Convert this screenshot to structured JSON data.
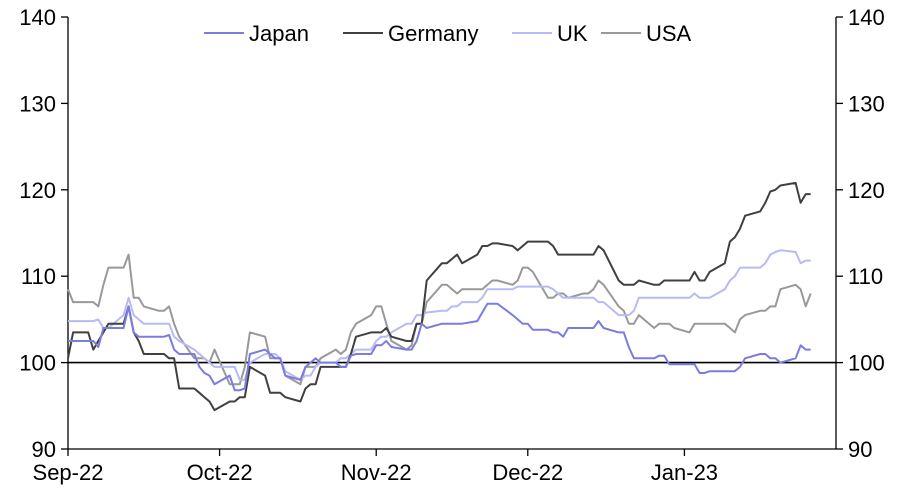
{
  "chart_data": {
    "type": "line",
    "title": "",
    "xlabel": "",
    "ylabel": "",
    "ylim": [
      90,
      140
    ],
    "yticks": [
      90,
      100,
      110,
      120,
      130,
      140
    ],
    "xlim": [
      "2022-09-01",
      "2023-01-31"
    ],
    "xticks": [
      {
        "date": "2022-09-01",
        "label": "Sep-22"
      },
      {
        "date": "2022-10-01",
        "label": "Oct-22"
      },
      {
        "date": "2022-11-01",
        "label": "Nov-22"
      },
      {
        "date": "2022-12-01",
        "label": "Dec-22"
      },
      {
        "date": "2023-01-01",
        "label": "Jan-23"
      }
    ],
    "reference_line": 100,
    "grid": false,
    "legend_position": "top",
    "dates": [
      "2022-09-01",
      "2022-09-02",
      "2022-09-05",
      "2022-09-06",
      "2022-09-07",
      "2022-09-08",
      "2022-09-09",
      "2022-09-12",
      "2022-09-13",
      "2022-09-14",
      "2022-09-15",
      "2022-09-16",
      "2022-09-19",
      "2022-09-20",
      "2022-09-21",
      "2022-09-22",
      "2022-09-23",
      "2022-09-26",
      "2022-09-27",
      "2022-09-28",
      "2022-09-29",
      "2022-09-30",
      "2022-10-03",
      "2022-10-04",
      "2022-10-05",
      "2022-10-06",
      "2022-10-07",
      "2022-10-10",
      "2022-10-11",
      "2022-10-12",
      "2022-10-13",
      "2022-10-14",
      "2022-10-17",
      "2022-10-18",
      "2022-10-19",
      "2022-10-20",
      "2022-10-21",
      "2022-10-24",
      "2022-10-25",
      "2022-10-26",
      "2022-10-27",
      "2022-10-28",
      "2022-10-31",
      "2022-11-01",
      "2022-11-02",
      "2022-11-03",
      "2022-11-04",
      "2022-11-07",
      "2022-11-08",
      "2022-11-09",
      "2022-11-10",
      "2022-11-11",
      "2022-11-14",
      "2022-11-15",
      "2022-11-16",
      "2022-11-17",
      "2022-11-18",
      "2022-11-21",
      "2022-11-22",
      "2022-11-23",
      "2022-11-24",
      "2022-11-25",
      "2022-11-28",
      "2022-11-29",
      "2022-11-30",
      "2022-12-01",
      "2022-12-02",
      "2022-12-05",
      "2022-12-06",
      "2022-12-07",
      "2022-12-08",
      "2022-12-09",
      "2022-12-12",
      "2022-12-13",
      "2022-12-14",
      "2022-12-15",
      "2022-12-16",
      "2022-12-19",
      "2022-12-20",
      "2022-12-21",
      "2022-12-22",
      "2022-12-23",
      "2022-12-26",
      "2022-12-27",
      "2022-12-28",
      "2022-12-29",
      "2022-12-30",
      "2023-01-02",
      "2023-01-03",
      "2023-01-04",
      "2023-01-05",
      "2023-01-06",
      "2023-01-09",
      "2023-01-10",
      "2023-01-11",
      "2023-01-12",
      "2023-01-13",
      "2023-01-16",
      "2023-01-17",
      "2023-01-18",
      "2023-01-19",
      "2023-01-20",
      "2023-01-23",
      "2023-01-24",
      "2023-01-25",
      "2023-01-26"
    ],
    "series": [
      {
        "name": "Japan",
        "color": "#7b7ce0",
        "values": [
          102.5,
          102.5,
          102.5,
          102.5,
          101.8,
          104.0,
          104.0,
          104.0,
          106.5,
          103.5,
          103.0,
          103.0,
          103.0,
          103.0,
          103.2,
          101.5,
          101.0,
          101.0,
          99.5,
          98.8,
          98.5,
          97.5,
          98.5,
          96.8,
          96.8,
          97.0,
          101.0,
          101.5,
          101.0,
          100.5,
          100.5,
          98.5,
          98.0,
          99.5,
          100.0,
          100.5,
          100.0,
          100.0,
          99.5,
          99.5,
          100.8,
          101.0,
          101.0,
          102.0,
          102.0,
          102.5,
          101.8,
          101.5,
          101.5,
          102.5,
          104.5,
          104.0,
          104.5,
          104.5,
          104.5,
          104.5,
          104.5,
          104.8,
          105.8,
          106.8,
          106.8,
          106.8,
          105.5,
          105.0,
          104.5,
          104.5,
          103.8,
          103.8,
          103.5,
          103.5,
          103.0,
          104.0,
          104.0,
          104.0,
          104.0,
          104.8,
          104.0,
          103.5,
          103.5,
          101.8,
          100.5,
          100.5,
          100.5,
          100.8,
          100.8,
          99.8,
          99.8,
          99.8,
          99.8,
          98.8,
          98.8,
          99.0,
          99.0,
          99.0,
          99.0,
          99.5,
          100.5,
          101.0,
          101.0,
          100.5,
          100.5,
          100.0,
          100.5,
          102.0,
          101.5,
          101.5
        ]
      },
      {
        "name": "Germany",
        "color": "#404040",
        "values": [
          100.5,
          103.5,
          103.5,
          101.5,
          102.5,
          103.5,
          104.5,
          104.5,
          106.5,
          103.5,
          102.5,
          101.0,
          101.0,
          101.0,
          100.5,
          100.5,
          97.0,
          97.0,
          96.5,
          96.0,
          95.5,
          94.5,
          95.5,
          95.5,
          96.0,
          96.0,
          99.5,
          98.5,
          96.5,
          96.5,
          96.5,
          96.0,
          95.5,
          97.0,
          97.5,
          97.5,
          99.5,
          99.5,
          99.5,
          99.5,
          101.0,
          103.0,
          103.5,
          103.5,
          103.5,
          104.0,
          103.0,
          102.5,
          102.5,
          104.5,
          104.5,
          109.5,
          111.5,
          111.5,
          112.0,
          112.5,
          111.5,
          112.5,
          113.5,
          113.5,
          113.8,
          113.8,
          113.5,
          113.0,
          113.5,
          114.0,
          114.0,
          114.0,
          113.5,
          112.5,
          112.5,
          112.5,
          112.5,
          112.5,
          112.5,
          113.5,
          113.0,
          109.5,
          109.0,
          109.0,
          109.0,
          109.5,
          109.0,
          109.0,
          109.5,
          109.5,
          109.5,
          109.5,
          110.5,
          109.5,
          109.5,
          110.5,
          111.5,
          114.0,
          114.5,
          115.5,
          117.0,
          117.5,
          118.5,
          119.8,
          120.0,
          120.5,
          120.8,
          118.5,
          119.5,
          119.5
        ]
      },
      {
        "name": "UK",
        "color": "#b8baf5",
        "values": [
          104.8,
          104.8,
          104.8,
          104.8,
          105.0,
          104.0,
          104.0,
          105.5,
          107.5,
          105.5,
          105.0,
          104.5,
          104.5,
          104.5,
          104.5,
          103.0,
          102.5,
          101.5,
          101.0,
          100.5,
          100.0,
          99.5,
          99.5,
          99.5,
          98.0,
          98.0,
          100.0,
          101.0,
          101.0,
          101.0,
          100.5,
          99.0,
          98.0,
          98.5,
          98.5,
          99.5,
          100.0,
          100.0,
          100.5,
          100.5,
          101.0,
          101.5,
          101.5,
          102.5,
          103.0,
          103.0,
          103.5,
          104.5,
          104.5,
          105.5,
          105.5,
          105.8,
          106.0,
          106.0,
          106.5,
          106.5,
          107.0,
          107.0,
          107.5,
          108.5,
          108.5,
          108.5,
          108.5,
          108.8,
          108.8,
          108.8,
          108.8,
          108.8,
          108.5,
          108.0,
          107.5,
          107.5,
          107.5,
          107.5,
          107.5,
          107.0,
          107.0,
          105.5,
          105.5,
          105.5,
          106.0,
          107.5,
          107.5,
          107.5,
          107.5,
          107.5,
          107.5,
          107.5,
          108.0,
          107.5,
          107.5,
          107.5,
          108.5,
          109.5,
          110.0,
          111.0,
          111.0,
          111.0,
          111.5,
          112.5,
          112.8,
          113.0,
          112.8,
          111.5,
          111.8,
          111.8
        ]
      },
      {
        "name": "USA",
        "color": "#999999",
        "values": [
          108.5,
          107.0,
          107.0,
          107.0,
          106.5,
          109.0,
          111.0,
          111.0,
          112.5,
          107.5,
          107.5,
          106.5,
          106.0,
          106.0,
          106.5,
          104.5,
          103.0,
          100.5,
          100.5,
          100.5,
          100.0,
          101.5,
          97.5,
          97.5,
          97.5,
          99.5,
          103.5,
          103.0,
          100.5,
          100.5,
          100.5,
          98.5,
          97.5,
          99.5,
          99.5,
          99.5,
          100.5,
          101.5,
          101.0,
          101.5,
          103.5,
          104.5,
          105.5,
          106.5,
          106.5,
          104.5,
          102.5,
          101.5,
          102.0,
          104.5,
          104.5,
          107.0,
          109.0,
          109.0,
          108.5,
          108.0,
          108.5,
          108.5,
          108.5,
          109.0,
          109.5,
          109.5,
          109.0,
          109.5,
          111.0,
          111.0,
          110.5,
          107.5,
          107.5,
          108.0,
          108.0,
          107.5,
          108.0,
          108.0,
          108.5,
          109.5,
          109.0,
          106.5,
          106.0,
          104.5,
          104.5,
          105.5,
          104.0,
          104.5,
          104.5,
          104.5,
          104.0,
          103.5,
          104.5,
          104.5,
          104.5,
          104.5,
          104.5,
          104.0,
          103.5,
          105.0,
          105.5,
          106.0,
          106.0,
          106.5,
          106.5,
          108.5,
          109.0,
          108.5,
          106.5,
          108.0
        ]
      }
    ]
  },
  "axis_color": "#000000",
  "legend": {
    "labels": [
      "Japan",
      "Germany",
      "UK",
      "USA"
    ]
  }
}
